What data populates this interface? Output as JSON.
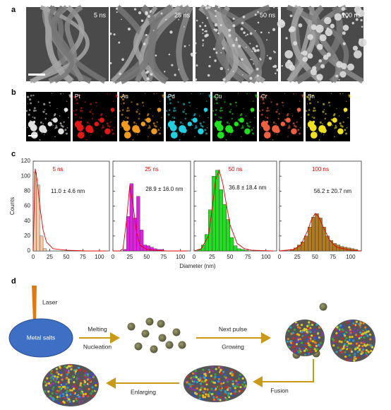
{
  "panel_labels": [
    "a",
    "b",
    "c",
    "d"
  ],
  "sem_images": [
    "5 ns",
    "25 ns",
    "50 ns",
    "100 ns"
  ],
  "eds_elements": [
    "Pt",
    "Au",
    "Pd",
    "Cu",
    "Cr",
    "Sn"
  ],
  "chart_data": [
    {
      "type": "histogram",
      "title": "5 ns",
      "annotation": "11.0 ± 4.6 nm",
      "y_label": "Counts",
      "x_label": "Diameter (nm)",
      "color": "#f6c8a6",
      "fit_color": "#e00000",
      "bins": [
        0,
        5,
        10,
        15,
        20
      ],
      "values": [
        105,
        88,
        20,
        3
      ],
      "fit_x": [
        0,
        3,
        6,
        10,
        15,
        20,
        30,
        50,
        80,
        110
      ],
      "fit_y": [
        0,
        110,
        95,
        60,
        28,
        12,
        3,
        1,
        0,
        0
      ],
      "xlim": [
        0,
        115
      ],
      "xticks": [
        0,
        25,
        50,
        75,
        100
      ],
      "ylim": [
        0,
        120
      ],
      "yticks": [
        0,
        20,
        40,
        60,
        80,
        100,
        120
      ]
    },
    {
      "type": "histogram",
      "title": "25 ns",
      "annotation": "28.9 ± 16.0 nm",
      "color": "#e020e0",
      "fit_color": "#e00000",
      "bins": [
        15,
        20,
        25,
        30,
        35,
        40,
        45,
        50,
        55,
        60,
        65,
        70,
        75
      ],
      "values": [
        2,
        46,
        90,
        44,
        73,
        28,
        8,
        7,
        5,
        3,
        2,
        2
      ],
      "fit_x": [
        0,
        10,
        15,
        20,
        25,
        30,
        35,
        40,
        50,
        60,
        80,
        110
      ],
      "fit_y": [
        0,
        0,
        3,
        40,
        88,
        60,
        25,
        8,
        2,
        1,
        0,
        0
      ],
      "xlim": [
        0,
        115
      ],
      "xticks": [
        0,
        25,
        50,
        75,
        100
      ],
      "ylim": [
        0,
        120
      ],
      "yticks": [
        0,
        20,
        40,
        60,
        80,
        100,
        120
      ]
    },
    {
      "type": "histogram",
      "title": "50 ns",
      "annotation": "36.8 ± 18.4 nm",
      "color": "#22dd22",
      "fit_color": "#e00000",
      "bins": [
        5,
        10,
        15,
        20,
        25,
        30,
        35,
        40,
        45,
        50,
        55,
        60,
        65,
        70,
        75
      ],
      "values": [
        2,
        8,
        22,
        55,
        100,
        108,
        82,
        62,
        42,
        18,
        7,
        3,
        2,
        1
      ],
      "fit_x": [
        0,
        10,
        20,
        25,
        30,
        35,
        40,
        45,
        50,
        60,
        70,
        80,
        110
      ],
      "fit_y": [
        0,
        3,
        20,
        55,
        95,
        108,
        90,
        62,
        35,
        10,
        3,
        1,
        0
      ],
      "xlim": [
        0,
        115
      ],
      "xticks": [
        0,
        25,
        50,
        75,
        100
      ],
      "ylim": [
        0,
        120
      ],
      "yticks": [
        0,
        20,
        40,
        60,
        80,
        100,
        120
      ]
    },
    {
      "type": "histogram",
      "title": "100 ns",
      "annotation": "56.2 ± 20.7 nm",
      "color": "#b07a20",
      "fit_color": "#e00000",
      "bins": [
        15,
        20,
        25,
        30,
        35,
        40,
        45,
        50,
        55,
        60,
        65,
        70,
        75,
        80,
        85,
        90,
        95,
        100,
        105,
        110
      ],
      "values": [
        2,
        4,
        8,
        12,
        20,
        32,
        45,
        50,
        44,
        32,
        20,
        14,
        10,
        8,
        6,
        5,
        4,
        3,
        2
      ],
      "fit_x": [
        0,
        20,
        30,
        40,
        45,
        50,
        55,
        60,
        70,
        80,
        100,
        115
      ],
      "fit_y": [
        0,
        2,
        8,
        28,
        42,
        50,
        46,
        35,
        15,
        5,
        1,
        0
      ],
      "xlim": [
        0,
        115
      ],
      "xticks": [
        0,
        25,
        50,
        75,
        100
      ],
      "ylim": [
        0,
        120
      ],
      "yticks": [
        0,
        20,
        40,
        60,
        80,
        100,
        120
      ]
    }
  ],
  "diagram": {
    "laser": "Laser",
    "source": "Metal salts",
    "step1_top": "Melting",
    "step1_bottom": "Nucleation",
    "step2_top": "Next pulse",
    "step2_bottom": "Growing",
    "step3": "Fusion",
    "step4": "Enlarging"
  }
}
